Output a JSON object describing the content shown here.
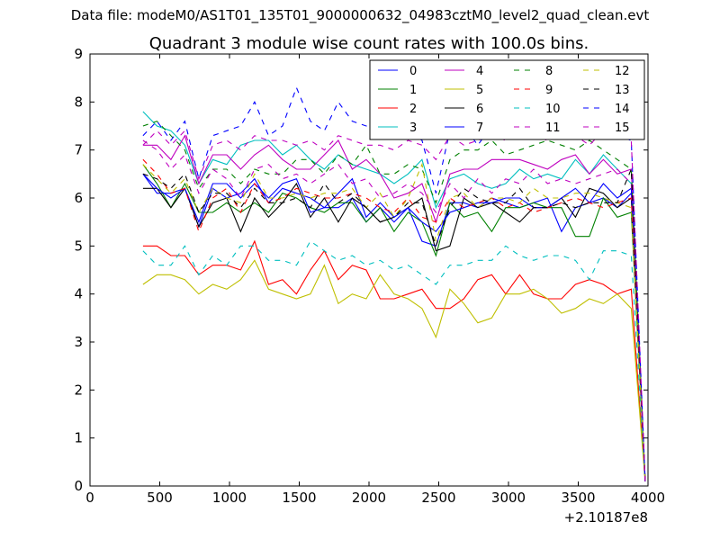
{
  "figure": {
    "suptitle": "Data file: modeM0/AS1T01_135T01_9000000632_04983cztM0_level2_quad_clean.evt"
  },
  "chart_data": {
    "type": "line",
    "title": "Quadrant 3 module wise count rates with 100.0s bins.",
    "xlabel": "",
    "ylabel": "",
    "x_offset_label": "+2.10187e8",
    "xlim": [
      0,
      4000
    ],
    "ylim": [
      0,
      9
    ],
    "xticks": [
      0,
      500,
      1000,
      1500,
      2000,
      2500,
      3000,
      3500,
      4000
    ],
    "yticks": [
      0,
      1,
      2,
      3,
      4,
      5,
      6,
      7,
      8,
      9
    ],
    "grid": false,
    "legend_position": "top-right",
    "x": [
      380,
      480,
      580,
      680,
      780,
      880,
      980,
      1080,
      1180,
      1280,
      1380,
      1480,
      1580,
      1680,
      1780,
      1880,
      1980,
      2080,
      2180,
      2280,
      2380,
      2480,
      2580,
      2680,
      2780,
      2880,
      2980,
      3080,
      3180,
      3280,
      3380,
      3480,
      3580,
      3680,
      3780,
      3880,
      3980
    ],
    "series": [
      {
        "name": "0",
        "color": "#0000ff",
        "dash": "solid",
        "values": [
          6.5,
          6.1,
          6.1,
          6.2,
          5.4,
          6.2,
          6.0,
          6.1,
          6.4,
          5.9,
          6.2,
          6.1,
          6.0,
          5.8,
          5.8,
          6.0,
          5.5,
          5.8,
          5.5,
          5.8,
          5.1,
          5.0,
          5.9,
          5.9,
          5.8,
          6.0,
          5.9,
          5.8,
          5.9,
          6.0,
          5.3,
          5.8,
          5.9,
          6.0,
          5.8,
          6.1,
          0.1
        ]
      },
      {
        "name": "1",
        "color": "#008000",
        "dash": "solid",
        "values": [
          6.7,
          6.3,
          5.8,
          6.3,
          5.7,
          5.7,
          5.9,
          5.7,
          5.9,
          5.7,
          6.1,
          6.0,
          5.8,
          5.7,
          5.9,
          5.9,
          5.5,
          5.8,
          5.3,
          5.7,
          5.5,
          4.8,
          5.9,
          5.6,
          5.7,
          5.3,
          5.8,
          5.8,
          5.9,
          5.8,
          5.8,
          5.2,
          5.2,
          6.0,
          5.6,
          5.7,
          0.1
        ]
      },
      {
        "name": "2",
        "color": "#ff0000",
        "dash": "solid",
        "values": [
          5.0,
          5.0,
          4.8,
          4.8,
          4.4,
          4.6,
          4.6,
          4.5,
          5.1,
          4.2,
          4.3,
          4.0,
          4.5,
          4.9,
          4.3,
          4.6,
          4.5,
          3.9,
          3.9,
          4.0,
          4.1,
          3.7,
          3.7,
          3.9,
          4.3,
          4.4,
          4.0,
          4.4,
          4.0,
          3.9,
          3.9,
          4.2,
          4.3,
          4.2,
          4.0,
          4.1,
          0.1
        ]
      },
      {
        "name": "3",
        "color": "#00bfbf",
        "dash": "solid",
        "values": [
          7.8,
          7.5,
          7.4,
          7.1,
          6.3,
          6.8,
          6.7,
          7.1,
          7.2,
          7.2,
          6.9,
          7.1,
          6.8,
          6.6,
          6.9,
          6.7,
          6.6,
          6.5,
          6.3,
          6.5,
          6.8,
          5.8,
          6.4,
          6.5,
          6.3,
          6.2,
          6.3,
          6.6,
          6.4,
          6.5,
          6.4,
          6.8,
          6.5,
          6.9,
          6.6,
          6.3,
          0.1
        ]
      },
      {
        "name": "4",
        "color": "#bf00bf",
        "dash": "solid",
        "values": [
          7.1,
          7.1,
          6.8,
          7.3,
          6.3,
          6.9,
          6.9,
          6.6,
          6.9,
          7.1,
          6.8,
          6.6,
          6.6,
          6.9,
          7.2,
          6.6,
          6.8,
          6.5,
          6.0,
          6.1,
          6.3,
          5.5,
          6.5,
          6.6,
          6.6,
          6.8,
          6.8,
          6.8,
          6.7,
          6.6,
          6.8,
          6.9,
          6.5,
          6.8,
          6.5,
          6.6,
          0.1
        ]
      },
      {
        "name": "5",
        "color": "#bfbf00",
        "dash": "solid",
        "values": [
          4.2,
          4.4,
          4.4,
          4.3,
          4.0,
          4.2,
          4.1,
          4.3,
          4.7,
          4.1,
          4.0,
          3.9,
          4.0,
          4.6,
          3.8,
          4.0,
          3.9,
          4.4,
          4.0,
          3.9,
          3.7,
          3.1,
          4.1,
          3.8,
          3.4,
          3.5,
          4.0,
          4.0,
          4.1,
          3.9,
          3.6,
          3.7,
          3.9,
          3.8,
          4.0,
          3.7,
          0.1
        ]
      },
      {
        "name": "6",
        "color": "#000000",
        "dash": "solid",
        "values": [
          6.2,
          6.2,
          5.8,
          6.2,
          5.4,
          5.9,
          6.0,
          5.3,
          6.0,
          5.6,
          5.9,
          6.3,
          5.6,
          6.0,
          5.5,
          6.0,
          5.8,
          5.5,
          5.6,
          5.8,
          6.0,
          4.9,
          5.0,
          6.0,
          5.8,
          5.9,
          5.7,
          5.5,
          5.8,
          5.8,
          6.0,
          5.6,
          6.2,
          6.1,
          5.8,
          6.0,
          0.1
        ]
      },
      {
        "name": "7",
        "color": "#0000ff",
        "dash": "solid",
        "values": [
          6.5,
          6.2,
          6.0,
          6.2,
          5.5,
          6.3,
          6.3,
          6.0,
          6.3,
          6.0,
          6.3,
          6.4,
          5.7,
          5.8,
          6.1,
          6.4,
          5.6,
          5.9,
          5.6,
          5.8,
          5.5,
          5.3,
          5.7,
          5.8,
          5.9,
          5.9,
          6.0,
          6.0,
          5.8,
          5.8,
          6.0,
          6.2,
          5.9,
          6.3,
          6.0,
          6.2,
          0.1
        ]
      },
      {
        "name": "8",
        "color": "#008000",
        "dash": "dashed",
        "values": [
          7.5,
          7.6,
          7.3,
          7.0,
          6.2,
          6.6,
          6.6,
          6.3,
          6.6,
          6.5,
          6.5,
          6.8,
          6.8,
          6.5,
          6.9,
          6.7,
          7.1,
          6.5,
          6.5,
          6.7,
          6.6,
          5.9,
          6.8,
          7.0,
          7.0,
          7.2,
          6.9,
          7.0,
          7.1,
          7.2,
          7.1,
          7.0,
          7.2,
          7.0,
          6.8,
          6.6,
          0.1
        ]
      },
      {
        "name": "9",
        "color": "#ff0000",
        "dash": "dashed",
        "values": [
          6.8,
          6.5,
          6.1,
          6.2,
          5.3,
          6.0,
          6.2,
          5.7,
          6.3,
          5.9,
          6.0,
          6.2,
          6.1,
          6.0,
          6.0,
          6.1,
          6.0,
          5.8,
          5.7,
          6.0,
          5.6,
          5.5,
          6.0,
          5.8,
          5.9,
          6.0,
          5.8,
          5.9,
          5.7,
          5.8,
          5.9,
          6.0,
          5.9,
          5.8,
          5.9,
          6.0,
          0.1
        ]
      },
      {
        "name": "10",
        "color": "#00bfbf",
        "dash": "dashed",
        "values": [
          4.9,
          4.6,
          4.6,
          5.0,
          4.4,
          4.8,
          4.6,
          5.0,
          5.0,
          4.7,
          4.7,
          4.6,
          5.1,
          4.9,
          4.7,
          4.8,
          4.6,
          4.7,
          4.5,
          4.6,
          4.4,
          4.2,
          4.6,
          4.6,
          4.7,
          4.7,
          5.0,
          4.8,
          4.7,
          4.8,
          4.8,
          4.7,
          4.3,
          4.9,
          4.9,
          4.8,
          0.1
        ]
      },
      {
        "name": "11",
        "color": "#bf00bf",
        "dash": "dashed",
        "values": [
          7.2,
          7.0,
          6.6,
          6.9,
          6.1,
          6.6,
          6.4,
          6.0,
          6.6,
          6.7,
          6.4,
          6.5,
          6.3,
          6.5,
          6.7,
          6.3,
          6.4,
          6.0,
          6.1,
          6.3,
          6.1,
          5.7,
          6.3,
          6.0,
          6.4,
          6.1,
          6.4,
          6.3,
          6.6,
          6.3,
          6.4,
          6.3,
          6.4,
          6.5,
          6.6,
          6.3,
          0.1
        ]
      },
      {
        "name": "12",
        "color": "#bfbf00",
        "dash": "dashed",
        "values": [
          6.7,
          6.4,
          6.1,
          6.4,
          5.7,
          6.2,
          6.0,
          5.9,
          6.5,
          6.0,
          6.0,
          6.1,
          6.0,
          6.1,
          6.1,
          6.2,
          5.8,
          6.1,
          5.6,
          6.0,
          6.7,
          5.1,
          6.0,
          6.1,
          5.8,
          6.0,
          6.0,
          5.9,
          6.2,
          6.0,
          6.0,
          6.1,
          6.1,
          6.0,
          5.9,
          5.8,
          0.1
        ]
      },
      {
        "name": "13",
        "color": "#000000",
        "dash": "dashed",
        "values": [
          6.5,
          6.4,
          6.2,
          6.5,
          5.7,
          6.1,
          6.1,
          5.8,
          6.2,
          5.9,
          5.9,
          6.0,
          5.8,
          6.3,
          5.9,
          6.1,
          5.8,
          5.5,
          5.6,
          5.9,
          5.9,
          5.0,
          5.8,
          6.2,
          6.0,
          5.9,
          5.9,
          6.2,
          5.8,
          5.8,
          5.9,
          5.8,
          5.9,
          5.9,
          5.9,
          6.6,
          0.1
        ]
      },
      {
        "name": "14",
        "color": "#0000ff",
        "dash": "dashed",
        "values": [
          7.3,
          7.6,
          7.2,
          7.6,
          6.4,
          7.3,
          7.4,
          7.5,
          8.0,
          7.3,
          7.5,
          8.3,
          7.6,
          7.4,
          8.0,
          7.6,
          7.5,
          7.5,
          7.3,
          7.4,
          7.2,
          6.1,
          7.4,
          7.5,
          7.1,
          7.5,
          7.3,
          7.4,
          7.4,
          7.6,
          7.4,
          7.5,
          7.5,
          7.6,
          7.3,
          7.2,
          0.1
        ]
      },
      {
        "name": "15",
        "color": "#bf00bf",
        "dash": "dashed",
        "values": [
          7.1,
          7.4,
          7.1,
          7.4,
          6.4,
          7.1,
          7.2,
          7.0,
          7.3,
          7.2,
          7.2,
          7.1,
          7.2,
          7.0,
          7.3,
          7.2,
          7.1,
          7.1,
          7.0,
          7.2,
          7.1,
          6.8,
          7.3,
          7.1,
          7.2,
          7.3,
          7.2,
          7.3,
          7.3,
          7.2,
          7.3,
          7.3,
          7.1,
          7.4,
          7.5,
          7.2,
          0.1
        ]
      }
    ]
  }
}
